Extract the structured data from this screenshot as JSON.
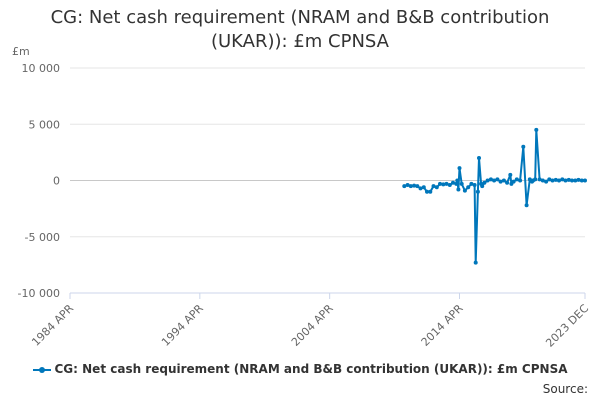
{
  "chart_data": {
    "type": "line",
    "title_lines": [
      "CG: Net cash requirement (NRAM and B&B contribution",
      "(UKAR)): £m CPNSA"
    ],
    "ylabel": "£m",
    "xlabel": "",
    "ylim": [
      -10000,
      10000
    ],
    "yticks": [
      10000,
      5000,
      0,
      -5000,
      -10000
    ],
    "ytick_labels": [
      "10 000",
      "5 000",
      "0",
      "-5 000",
      "-10 000"
    ],
    "xlim": [
      "1984-04",
      "2023-12"
    ],
    "xticks": [
      "1984-04",
      "1994-04",
      "2004-04",
      "2014-04",
      "2023-12"
    ],
    "xtick_labels": [
      "1984 APR",
      "1994 APR",
      "2004 APR",
      "2014 APR",
      "2023 DEC"
    ],
    "grid": true,
    "legend_position": "bottom",
    "color": "#0077bb",
    "series": [
      {
        "name": "CG: Net cash requirement (NRAM and B&B contribution (UKAR)): £m CPNSA",
        "x": [
          "2010-01",
          "2010-04",
          "2010-07",
          "2010-10",
          "2011-01",
          "2011-04",
          "2011-07",
          "2011-10",
          "2012-01",
          "2012-04",
          "2012-07",
          "2012-10",
          "2013-01",
          "2013-04",
          "2013-07",
          "2013-10",
          "2014-01",
          "2014-02",
          "2014-03",
          "2014-04",
          "2014-06",
          "2014-09",
          "2014-12",
          "2015-03",
          "2015-06",
          "2015-07",
          "2015-09",
          "2015-10",
          "2015-12",
          "2016-01",
          "2016-03",
          "2016-06",
          "2016-09",
          "2016-12",
          "2017-03",
          "2017-06",
          "2017-09",
          "2017-12",
          "2018-03",
          "2018-04",
          "2018-06",
          "2018-09",
          "2018-12",
          "2019-03",
          "2019-06",
          "2019-09",
          "2019-11",
          "2019-12",
          "2020-02",
          "2020-03",
          "2020-06",
          "2020-09",
          "2020-12",
          "2021-03",
          "2021-06",
          "2021-09",
          "2021-12",
          "2022-03",
          "2022-06",
          "2022-09",
          "2022-12",
          "2023-03",
          "2023-06",
          "2023-09",
          "2023-12"
        ],
        "values": [
          -500,
          -400,
          -500,
          -450,
          -500,
          -700,
          -600,
          -1000,
          -1000,
          -500,
          -600,
          -300,
          -350,
          -300,
          -400,
          -200,
          -300,
          0,
          -800,
          1100,
          -300,
          -900,
          -600,
          -300,
          -400,
          -7300,
          -1000,
          2000,
          -300,
          -500,
          -200,
          0,
          100,
          0,
          100,
          -100,
          0,
          -200,
          500,
          -300,
          -100,
          100,
          0,
          3000,
          -2200,
          100,
          -100,
          0,
          100,
          4500,
          100,
          0,
          -100,
          100,
          0,
          50,
          0,
          100,
          0,
          50,
          0,
          0,
          50,
          0,
          0
        ]
      }
    ]
  },
  "source_label": "Source:"
}
